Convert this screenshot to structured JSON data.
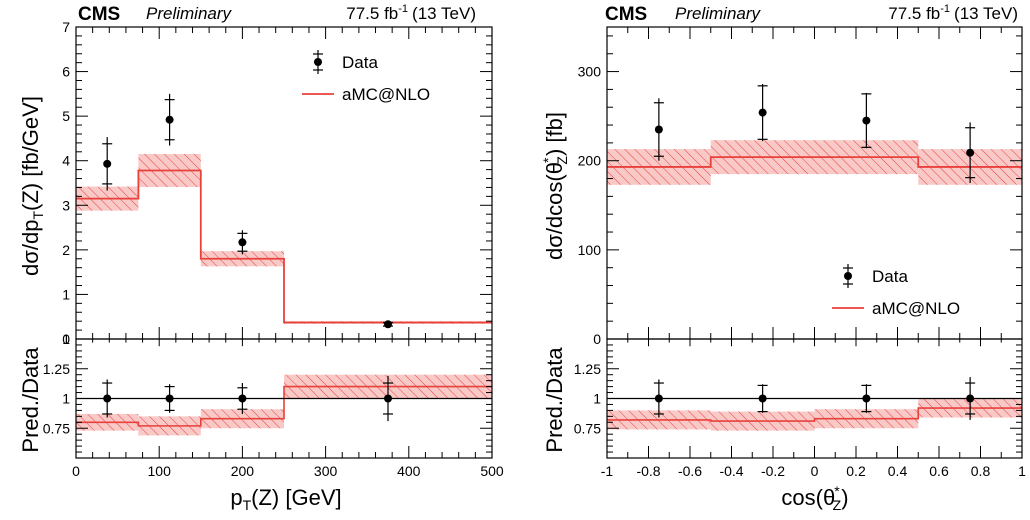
{
  "header": {
    "experiment": "CMS",
    "status": "Preliminary",
    "lumi": "77.5 fb",
    "lumi_exp": "-1",
    "energy": "(13 TeV)"
  },
  "colors": {
    "prediction": "#e8413c",
    "band_fill": "#f8c9c7",
    "hatch": "#e8413c",
    "data": "#000000"
  },
  "chart_data": [
    {
      "type": "bar",
      "panel": "left",
      "xlabel_main": "p",
      "xlabel_sub": "T",
      "xlabel_rest": "(Z) [GeV]",
      "ylabel_main_parts": [
        "dσ/dp",
        "T",
        "(Z) [fb/GeV]"
      ],
      "ylabel_ratio": "Pred./Data",
      "xlim": [
        0,
        500
      ],
      "ylim": [
        0,
        7
      ],
      "ratio_ylim": [
        0.5,
        1.5
      ],
      "x_ticks": [
        0,
        100,
        200,
        300,
        400,
        500
      ],
      "x_tick_labels": [
        "0",
        "100",
        "200",
        "300",
        "400",
        "500"
      ],
      "y_ticks": [
        0,
        1,
        2,
        3,
        4,
        5,
        6,
        7
      ],
      "y_tick_labels": [
        "0",
        "1",
        "2",
        "3",
        "4",
        "5",
        "6",
        "7"
      ],
      "ratio_ticks": [
        0.75,
        1,
        1.25
      ],
      "ratio_tick_labels": [
        "0.75",
        "1",
        "1.25"
      ],
      "ratio_top_label": "1",
      "bins": [
        [
          0,
          75
        ],
        [
          75,
          150
        ],
        [
          150,
          250
        ],
        [
          250,
          500
        ]
      ],
      "prediction": [
        3.15,
        3.78,
        1.8,
        0.37
      ],
      "prediction_unc": [
        0.27,
        0.37,
        0.17,
        0.03
      ],
      "data_x": [
        37.5,
        112.5,
        200,
        375
      ],
      "data_y": [
        3.93,
        4.92,
        2.17,
        0.33
      ],
      "data_err_stat": [
        0.45,
        0.45,
        0.2,
        0.04
      ],
      "data_err_tot": [
        0.6,
        0.58,
        0.27,
        0.06
      ],
      "ratio": [
        0.8,
        0.77,
        0.83,
        1.1
      ],
      "ratio_unc": [
        0.07,
        0.08,
        0.08,
        0.1
      ],
      "ratio_data_err_stat": [
        0.13,
        0.1,
        0.09,
        0.13
      ],
      "ratio_data_err_tot": [
        0.16,
        0.12,
        0.13,
        0.19
      ],
      "legend": {
        "data": "Data",
        "prediction": "aMC@NLO",
        "position": "top-right"
      }
    },
    {
      "type": "bar",
      "panel": "right",
      "xlabel_parts": [
        "cos(θ",
        "*",
        "Z",
        ")"
      ],
      "ylabel_main_parts": [
        "dσ/dcos(θ",
        "*",
        "Z",
        ") [fb]"
      ],
      "ylabel_ratio": "Pred./Data",
      "xlim": [
        -1,
        1
      ],
      "ylim": [
        0,
        350
      ],
      "ratio_ylim": [
        0.5,
        1.5
      ],
      "x_ticks": [
        -1,
        -0.8,
        -0.6,
        -0.4,
        -0.2,
        0,
        0.2,
        0.4,
        0.6,
        0.8,
        1
      ],
      "x_tick_labels": [
        "-1",
        "-0.8",
        "-0.6",
        "-0.4",
        "-0.2",
        "0",
        "0.2",
        "0.4",
        "0.6",
        "0.8",
        "1"
      ],
      "y_ticks": [
        0,
        100,
        200,
        300
      ],
      "y_tick_labels": [
        "0",
        "100",
        "200",
        "300"
      ],
      "ratio_ticks": [
        0.75,
        1,
        1.25
      ],
      "ratio_tick_labels": [
        "0.75",
        "1",
        "1.25"
      ],
      "ratio_top_label": "",
      "bins": [
        [
          -1,
          -0.5
        ],
        [
          -0.5,
          0
        ],
        [
          0,
          0.5
        ],
        [
          0.5,
          1
        ]
      ],
      "prediction": [
        193,
        204,
        204,
        193
      ],
      "prediction_unc": [
        20,
        19,
        19,
        20
      ],
      "data_x": [
        -0.75,
        -0.25,
        0.25,
        0.75
      ],
      "data_y": [
        235,
        254,
        245,
        209
      ],
      "data_err_stat": [
        30,
        30,
        30,
        28
      ],
      "data_err_tot": [
        35,
        32,
        31,
        34
      ],
      "ratio": [
        0.82,
        0.81,
        0.83,
        0.92
      ],
      "ratio_unc": [
        0.08,
        0.08,
        0.08,
        0.08
      ],
      "ratio_data_err_stat": [
        0.13,
        0.11,
        0.11,
        0.13
      ],
      "ratio_data_err_tot": [
        0.16,
        0.12,
        0.12,
        0.18
      ],
      "legend": {
        "data": "Data",
        "prediction": "aMC@NLO",
        "position": "bottom-right"
      }
    }
  ]
}
